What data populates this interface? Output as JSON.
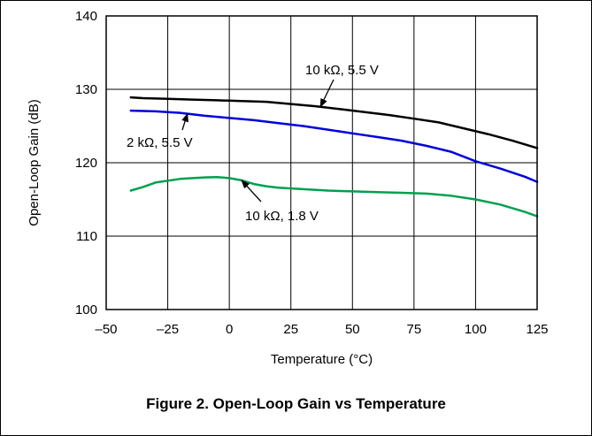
{
  "caption": "Figure 2. Open-Loop Gain vs Temperature",
  "chart_data": {
    "type": "line",
    "title": "",
    "xlabel": "Temperature (°C)",
    "ylabel": "Open-Loop Gain (dB)",
    "xlim": [
      -50,
      125
    ],
    "ylim": [
      100,
      140
    ],
    "xticks": [
      -50,
      -25,
      0,
      25,
      50,
      75,
      100,
      125
    ],
    "xtick_labels": [
      "–50",
      "–25",
      "0",
      "25",
      "50",
      "75",
      "100",
      "125"
    ],
    "yticks": [
      100,
      110,
      120,
      130,
      140
    ],
    "ytick_labels": [
      "100",
      "110",
      "120",
      "130",
      "140"
    ],
    "grid": true,
    "series": [
      {
        "name": "10 kΩ, 5.5 V",
        "color": "#000000",
        "x": [
          -40,
          -35,
          -25,
          -15,
          -5,
          5,
          15,
          25,
          35,
          45,
          55,
          65,
          75,
          85,
          95,
          105,
          115,
          125
        ],
        "values": [
          128.9,
          128.8,
          128.7,
          128.6,
          128.5,
          128.4,
          128.3,
          128.0,
          127.7,
          127.3,
          126.9,
          126.5,
          126.0,
          125.5,
          124.7,
          123.9,
          123.0,
          122.0
        ]
      },
      {
        "name": "2 kΩ, 5.5 V",
        "color": "#0000dd",
        "x": [
          -40,
          -30,
          -20,
          -10,
          0,
          10,
          20,
          30,
          40,
          50,
          60,
          70,
          80,
          90,
          100,
          110,
          120,
          125
        ],
        "values": [
          127.1,
          127.0,
          126.8,
          126.4,
          126.1,
          125.8,
          125.4,
          125.0,
          124.5,
          124.0,
          123.5,
          123.0,
          122.3,
          121.5,
          120.2,
          119.2,
          118.1,
          117.4
        ]
      },
      {
        "name": "10 kΩ, 1.8 V",
        "color": "#00a050",
        "x": [
          -40,
          -35,
          -30,
          -20,
          -10,
          -5,
          0,
          5,
          10,
          15,
          20,
          30,
          40,
          50,
          60,
          70,
          80,
          90,
          100,
          110,
          120,
          125
        ],
        "values": [
          116.2,
          116.7,
          117.3,
          117.8,
          118.0,
          118.05,
          117.9,
          117.6,
          117.1,
          116.8,
          116.6,
          116.4,
          116.2,
          116.1,
          116.0,
          115.9,
          115.8,
          115.5,
          115.0,
          114.3,
          113.3,
          112.7
        ]
      }
    ],
    "annotations": [
      {
        "text": "10 kΩ, 5.5 V",
        "series": 0,
        "point_to_x": 37
      },
      {
        "text": "2 kΩ, 5.5 V",
        "series": 1,
        "point_to_x": -17
      },
      {
        "text": "10 kΩ, 1.8 V",
        "series": 2,
        "point_to_x": 5
      }
    ]
  }
}
